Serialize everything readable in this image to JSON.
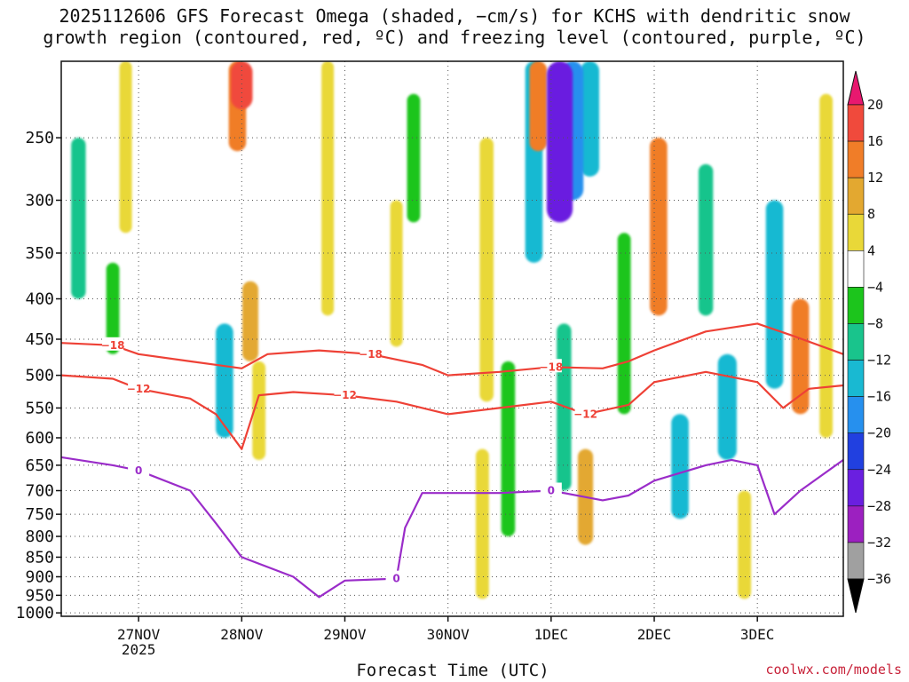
{
  "title_lines": [
    "2025112606 GFS Forecast Omega (shaded, −cm/s) for KCHS with dendritic snow",
    "growth region (contoured, red, ºC) and freezing level (contoured, purple, ºC)"
  ],
  "credit": "coolwx.com/models",
  "chart_data": {
    "type": "heatmap",
    "title": "2025112606 GFS Forecast Omega (shaded, −cm/s) for KCHS with dendritic snow growth region (contoured, red, ºC) and freezing level (contoured, purple, ºC)",
    "xlabel": "Forecast Time (UTC)",
    "ylabel": "",
    "x_start": "2025-11-26 06",
    "x_end": "2025-12-03 20",
    "x_ticks": [
      {
        "label": "27NOV",
        "sub": "2025",
        "time": "2025-11-27 00"
      },
      {
        "label": "28NOV",
        "sub": "",
        "time": "2025-11-28 00"
      },
      {
        "label": "29NOV",
        "sub": "",
        "time": "2025-11-29 00"
      },
      {
        "label": "30NOV",
        "sub": "",
        "time": "2025-11-30 00"
      },
      {
        "label": "1DEC",
        "sub": "",
        "time": "2025-12-01 00"
      },
      {
        "label": "2DEC",
        "sub": "",
        "time": "2025-12-02 00"
      },
      {
        "label": "3DEC",
        "sub": "",
        "time": "2025-12-03 00"
      }
    ],
    "y_axis": {
      "name": "",
      "unit": "",
      "scale": "log",
      "reversed": true,
      "range": [
        1010,
        200
      ],
      "ticks": [
        250,
        300,
        350,
        400,
        450,
        500,
        550,
        600,
        650,
        700,
        750,
        800,
        850,
        900,
        950,
        1000
      ]
    },
    "grid": true,
    "colorbar": {
      "levels": [
        "20",
        "16",
        "12",
        "8",
        "4",
        "−4",
        "−8",
        "−12",
        "−16",
        "−20",
        "−24",
        "−28",
        "−32",
        "−36"
      ],
      "colors": [
        "#e8186f",
        "#f04a3c",
        "#f07d28",
        "#e3a830",
        "#e9d838",
        "#ffffff",
        "#1cc51c",
        "#19c48c",
        "#19b9d2",
        "#2690ee",
        "#2140e0",
        "#6a1fe0",
        "#9c20c0",
        "#a0a0a0",
        "#000000"
      ]
    },
    "omega_blobs": [
      {
        "t": "2025-11-26 21",
        "p1": 200,
        "p2": 330,
        "v": 5
      },
      {
        "t": "2025-11-26 18",
        "p1": 360,
        "p2": 470,
        "v": -6
      },
      {
        "t": "2025-11-26 10",
        "p1": 250,
        "p2": 400,
        "v": -8
      },
      {
        "t": "2025-11-27 23",
        "p1": 200,
        "p2": 260,
        "v": 12
      },
      {
        "t": "2025-11-28 00",
        "p1": 200,
        "p2": 230,
        "v": 18
      },
      {
        "t": "2025-11-28 02",
        "p1": 380,
        "p2": 480,
        "v": 10
      },
      {
        "t": "2025-11-28 04",
        "p1": 480,
        "p2": 640,
        "v": 6
      },
      {
        "t": "2025-11-27 20",
        "p1": 430,
        "p2": 600,
        "v": -12
      },
      {
        "t": "2025-11-28 20",
        "p1": 200,
        "p2": 420,
        "v": 5
      },
      {
        "t": "2025-11-29 12",
        "p1": 300,
        "p2": 460,
        "v": 5
      },
      {
        "t": "2025-11-29 16",
        "p1": 220,
        "p2": 320,
        "v": -6
      },
      {
        "t": "2025-11-30 08",
        "p1": 620,
        "p2": 960,
        "v": 6
      },
      {
        "t": "2025-11-30 09",
        "p1": 250,
        "p2": 540,
        "v": 7
      },
      {
        "t": "2025-11-30 14",
        "p1": 480,
        "p2": 800,
        "v": -7
      },
      {
        "t": "2025-11-30 20",
        "p1": 200,
        "p2": 360,
        "v": -12
      },
      {
        "t": "2025-11-30 21",
        "p1": 200,
        "p2": 260,
        "v": 12
      },
      {
        "t": "2025-12-01 02",
        "p1": 200,
        "p2": 320,
        "v": -24
      },
      {
        "t": "2025-12-01 05",
        "p1": 200,
        "p2": 300,
        "v": -18
      },
      {
        "t": "2025-12-01 09",
        "p1": 200,
        "p2": 280,
        "v": -14
      },
      {
        "t": "2025-12-01 03",
        "p1": 430,
        "p2": 700,
        "v": -8
      },
      {
        "t": "2025-12-01 08",
        "p1": 620,
        "p2": 820,
        "v": 9
      },
      {
        "t": "2025-12-01 17",
        "p1": 330,
        "p2": 560,
        "v": -6
      },
      {
        "t": "2025-12-02 01",
        "p1": 250,
        "p2": 420,
        "v": 12
      },
      {
        "t": "2025-12-02 06",
        "p1": 560,
        "p2": 760,
        "v": -12
      },
      {
        "t": "2025-12-02 12",
        "p1": 270,
        "p2": 420,
        "v": -8
      },
      {
        "t": "2025-12-02 17",
        "p1": 470,
        "p2": 640,
        "v": -14
      },
      {
        "t": "2025-12-02 21",
        "p1": 700,
        "p2": 960,
        "v": 6
      },
      {
        "t": "2025-12-03 04",
        "p1": 300,
        "p2": 520,
        "v": -12
      },
      {
        "t": "2025-12-03 10",
        "p1": 400,
        "p2": 560,
        "v": 12
      },
      {
        "t": "2025-12-03 16",
        "p1": 220,
        "p2": 600,
        "v": 6
      }
    ],
    "contours": [
      {
        "value": -18,
        "label": "−18",
        "color": "#ee4136",
        "points": [
          [
            "2025-11-26 06",
            455
          ],
          [
            "2025-11-26 18",
            458
          ],
          [
            "2025-11-27 00",
            470
          ],
          [
            "2025-11-27 12",
            480
          ],
          [
            "2025-11-28 00",
            490
          ],
          [
            "2025-11-28 06",
            470
          ],
          [
            "2025-11-28 18",
            465
          ],
          [
            "2025-11-29 06",
            470
          ],
          [
            "2025-11-29 18",
            485
          ],
          [
            "2025-11-30 00",
            500
          ],
          [
            "2025-11-30 12",
            495
          ],
          [
            "2025-12-01 00",
            488
          ],
          [
            "2025-12-01 12",
            490
          ],
          [
            "2025-12-01 18",
            480
          ],
          [
            "2025-12-02 00",
            465
          ],
          [
            "2025-12-02 12",
            440
          ],
          [
            "2025-12-03 00",
            430
          ],
          [
            "2025-12-03 08",
            445
          ],
          [
            "2025-12-03 20",
            470
          ]
        ]
      },
      {
        "value": -12,
        "label": "−12",
        "color": "#ee4136",
        "points": [
          [
            "2025-11-26 06",
            500
          ],
          [
            "2025-11-26 18",
            505
          ],
          [
            "2025-11-27 00",
            520
          ],
          [
            "2025-11-27 12",
            535
          ],
          [
            "2025-11-27 18",
            560
          ],
          [
            "2025-11-28 00",
            620
          ],
          [
            "2025-11-28 04",
            530
          ],
          [
            "2025-11-28 12",
            525
          ],
          [
            "2025-11-29 00",
            530
          ],
          [
            "2025-11-29 12",
            540
          ],
          [
            "2025-11-30 00",
            560
          ],
          [
            "2025-11-30 12",
            550
          ],
          [
            "2025-12-01 00",
            540
          ],
          [
            "2025-12-01 08",
            560
          ],
          [
            "2025-12-01 18",
            545
          ],
          [
            "2025-12-02 00",
            510
          ],
          [
            "2025-12-02 12",
            495
          ],
          [
            "2025-12-03 00",
            510
          ],
          [
            "2025-12-03 06",
            550
          ],
          [
            "2025-12-03 12",
            520
          ],
          [
            "2025-12-03 20",
            515
          ]
        ]
      },
      {
        "value": 0,
        "label": "0",
        "color": "#9a2cc9",
        "points": [
          [
            "2025-11-26 06",
            635
          ],
          [
            "2025-11-26 18",
            650
          ],
          [
            "2025-11-27 00",
            660
          ],
          [
            "2025-11-27 12",
            700
          ],
          [
            "2025-11-27 18",
            770
          ],
          [
            "2025-11-28 00",
            850
          ],
          [
            "2025-11-28 12",
            900
          ],
          [
            "2025-11-28 18",
            955
          ],
          [
            "2025-11-29 00",
            910
          ],
          [
            "2025-11-29 12",
            905
          ],
          [
            "2025-11-29 14",
            780
          ],
          [
            "2025-11-29 18",
            705
          ],
          [
            "2025-11-30 00",
            705
          ],
          [
            "2025-11-30 12",
            705
          ],
          [
            "2025-12-01 00",
            700
          ],
          [
            "2025-12-01 12",
            720
          ],
          [
            "2025-12-01 18",
            710
          ],
          [
            "2025-12-02 00",
            680
          ],
          [
            "2025-12-02 12",
            650
          ],
          [
            "2025-12-02 18",
            640
          ],
          [
            "2025-12-03 00",
            650
          ],
          [
            "2025-12-03 04",
            750
          ],
          [
            "2025-12-03 10",
            700
          ],
          [
            "2025-12-03 20",
            640
          ]
        ]
      }
    ]
  }
}
